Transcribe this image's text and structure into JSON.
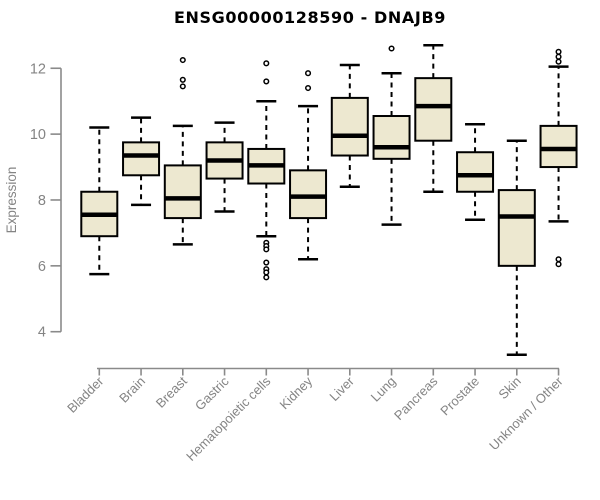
{
  "title": "ENSG00000128590 - DNAJB9",
  "colors": {
    "background": "#ffffff",
    "title_text": "#000000",
    "axis_line": "#8a8a8a",
    "tick_text": "#848484",
    "box_fill": "#ede8d0",
    "box_stroke": "#000000",
    "outlier_fill": "#ffffff"
  },
  "chart_data": {
    "type": "boxplot",
    "title": "ENSG00000128590 - DNAJB9",
    "xlabel": "",
    "ylabel": "Expression",
    "ylim": [
      3.0,
      13.0
    ],
    "yticks": [
      4,
      6,
      8,
      10,
      12
    ],
    "grid": "off",
    "legend": "none",
    "categories": [
      "Bladder",
      "Brain",
      "Breast",
      "Gastric",
      "Hematopoietic cells",
      "Kidney",
      "Liver",
      "Lung",
      "Pancreas",
      "Prostate",
      "Skin",
      "Unknown / Other"
    ],
    "boxes": [
      {
        "category": "Bladder",
        "whisker_low": 5.75,
        "q1": 6.9,
        "median": 7.55,
        "q3": 8.25,
        "whisker_high": 10.2,
        "outliers": []
      },
      {
        "category": "Brain",
        "whisker_low": 7.85,
        "q1": 8.75,
        "median": 9.35,
        "q3": 9.75,
        "whisker_high": 10.5,
        "outliers": []
      },
      {
        "category": "Breast",
        "whisker_low": 6.65,
        "q1": 7.45,
        "median": 8.05,
        "q3": 9.05,
        "whisker_high": 10.25,
        "outliers": [
          12.25,
          11.65,
          11.45
        ]
      },
      {
        "category": "Gastric",
        "whisker_low": 7.65,
        "q1": 8.65,
        "median": 9.2,
        "q3": 9.75,
        "whisker_high": 10.35,
        "outliers": []
      },
      {
        "category": "Hematopoietic cells",
        "whisker_low": 6.9,
        "q1": 8.5,
        "median": 9.05,
        "q3": 9.55,
        "whisker_high": 11.0,
        "outliers": [
          12.15,
          11.6,
          6.7,
          6.6,
          6.5,
          6.1,
          5.9,
          5.8,
          5.65
        ]
      },
      {
        "category": "Kidney",
        "whisker_low": 6.2,
        "q1": 7.45,
        "median": 8.1,
        "q3": 8.9,
        "whisker_high": 10.85,
        "outliers": [
          11.85,
          11.4
        ]
      },
      {
        "category": "Liver",
        "whisker_low": 8.4,
        "q1": 9.35,
        "median": 9.95,
        "q3": 11.1,
        "whisker_high": 12.1,
        "outliers": []
      },
      {
        "category": "Lung",
        "whisker_low": 7.25,
        "q1": 9.25,
        "median": 9.6,
        "q3": 10.55,
        "whisker_high": 11.85,
        "outliers": [
          12.6
        ]
      },
      {
        "category": "Pancreas",
        "whisker_low": 8.25,
        "q1": 9.8,
        "median": 10.85,
        "q3": 11.7,
        "whisker_high": 12.7,
        "outliers": []
      },
      {
        "category": "Prostate",
        "whisker_low": 7.4,
        "q1": 8.25,
        "median": 8.75,
        "q3": 9.45,
        "whisker_high": 10.3,
        "outliers": []
      },
      {
        "category": "Skin",
        "whisker_low": 3.3,
        "q1": 6.0,
        "median": 7.5,
        "q3": 8.3,
        "whisker_high": 9.8,
        "outliers": []
      },
      {
        "category": "Unknown / Other",
        "whisker_low": 7.35,
        "q1": 9.0,
        "median": 9.55,
        "q3": 10.25,
        "whisker_high": 12.05,
        "outliers": [
          12.5,
          12.35,
          12.2,
          6.2,
          6.05
        ]
      }
    ]
  }
}
